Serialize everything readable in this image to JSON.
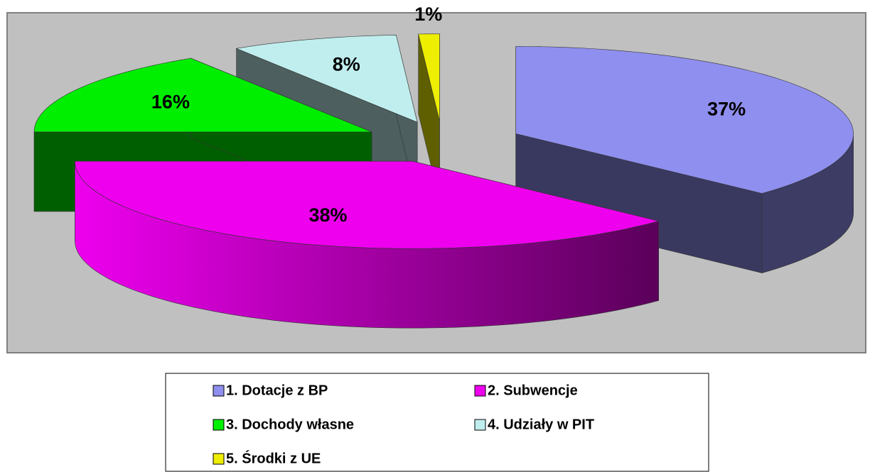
{
  "chart_data": {
    "type": "pie",
    "categories": [
      "1. Dotacje z BP",
      "2. Subwencje",
      "3. Dochody własne",
      "4. Udziały w PIT",
      "5. Środki z UE"
    ],
    "values": [
      37,
      38,
      16,
      8,
      1
    ],
    "value_labels": [
      "37%",
      "38%",
      "16%",
      "8%",
      "1%"
    ],
    "colors": [
      "#8f8fef",
      "#ee00ee",
      "#00ee00",
      "#c0eeee",
      "#eeee00"
    ],
    "legend": "bottom"
  }
}
